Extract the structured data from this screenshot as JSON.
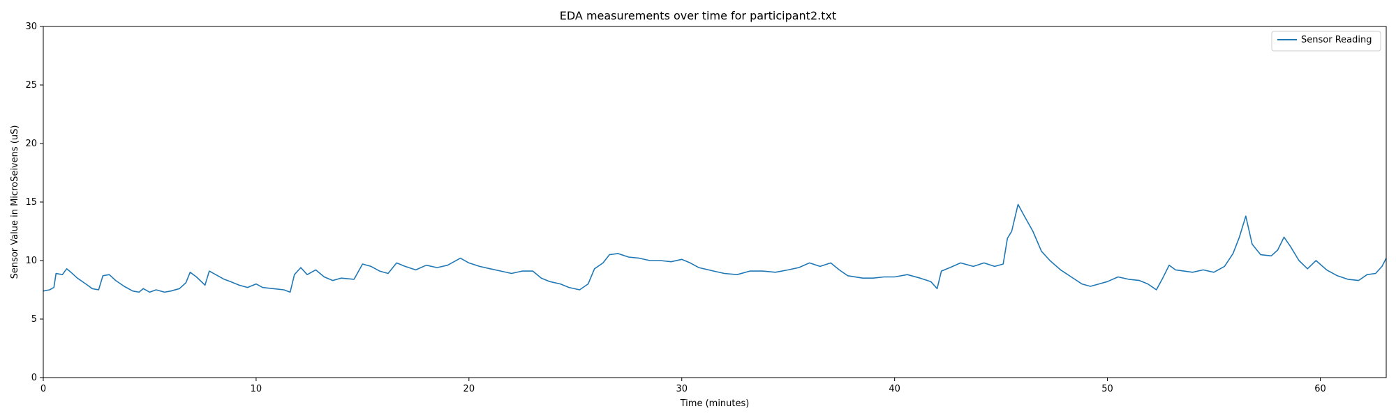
{
  "chart_data": {
    "type": "line",
    "title": "EDA measurements over time for participant2.txt",
    "xlabel": "Time (minutes)",
    "ylabel": "Sensor Value in MicroSeivens (uS)",
    "xlim": [
      0,
      63.1
    ],
    "ylim": [
      0,
      30
    ],
    "x_ticks": [
      0,
      10,
      20,
      30,
      40,
      50,
      60
    ],
    "y_ticks": [
      0,
      5,
      10,
      15,
      20,
      25,
      30
    ],
    "grid": false,
    "legend_position": "top-right",
    "series": [
      {
        "name": "Sensor Reading",
        "color": "#1f77b4",
        "points": [
          [
            0,
            7.4
          ],
          [
            0.3,
            7.5
          ],
          [
            0.5,
            7.7
          ],
          [
            0.6,
            8.9
          ],
          [
            0.9,
            8.8
          ],
          [
            1.1,
            9.3
          ],
          [
            1.3,
            9.0
          ],
          [
            1.6,
            8.5
          ],
          [
            2.0,
            8.0
          ],
          [
            2.3,
            7.6
          ],
          [
            2.6,
            7.5
          ],
          [
            2.8,
            8.7
          ],
          [
            3.1,
            8.8
          ],
          [
            3.4,
            8.3
          ],
          [
            3.8,
            7.8
          ],
          [
            4.2,
            7.4
          ],
          [
            4.5,
            7.3
          ],
          [
            4.7,
            7.6
          ],
          [
            5.0,
            7.3
          ],
          [
            5.3,
            7.5
          ],
          [
            5.7,
            7.3
          ],
          [
            6.0,
            7.4
          ],
          [
            6.4,
            7.6
          ],
          [
            6.7,
            8.1
          ],
          [
            6.9,
            9.0
          ],
          [
            7.2,
            8.6
          ],
          [
            7.6,
            7.9
          ],
          [
            7.8,
            9.1
          ],
          [
            8.2,
            8.7
          ],
          [
            8.5,
            8.4
          ],
          [
            8.8,
            8.2
          ],
          [
            9.2,
            7.9
          ],
          [
            9.6,
            7.7
          ],
          [
            10.0,
            8.0
          ],
          [
            10.3,
            7.7
          ],
          [
            10.8,
            7.6
          ],
          [
            11.3,
            7.5
          ],
          [
            11.6,
            7.3
          ],
          [
            11.8,
            8.8
          ],
          [
            12.1,
            9.4
          ],
          [
            12.4,
            8.8
          ],
          [
            12.8,
            9.2
          ],
          [
            13.2,
            8.6
          ],
          [
            13.6,
            8.3
          ],
          [
            14.0,
            8.5
          ],
          [
            14.6,
            8.4
          ],
          [
            15.0,
            9.7
          ],
          [
            15.4,
            9.5
          ],
          [
            15.8,
            9.1
          ],
          [
            16.2,
            8.9
          ],
          [
            16.6,
            9.8
          ],
          [
            17.0,
            9.5
          ],
          [
            17.5,
            9.2
          ],
          [
            18.0,
            9.6
          ],
          [
            18.5,
            9.4
          ],
          [
            19.0,
            9.6
          ],
          [
            19.6,
            10.2
          ],
          [
            20.0,
            9.8
          ],
          [
            20.5,
            9.5
          ],
          [
            21.0,
            9.3
          ],
          [
            21.5,
            9.1
          ],
          [
            22.0,
            8.9
          ],
          [
            22.5,
            9.1
          ],
          [
            23.0,
            9.1
          ],
          [
            23.4,
            8.5
          ],
          [
            23.8,
            8.2
          ],
          [
            24.3,
            8.0
          ],
          [
            24.7,
            7.7
          ],
          [
            25.2,
            7.5
          ],
          [
            25.6,
            8.0
          ],
          [
            25.9,
            9.3
          ],
          [
            26.3,
            9.8
          ],
          [
            26.6,
            10.5
          ],
          [
            27.0,
            10.6
          ],
          [
            27.5,
            10.3
          ],
          [
            28.0,
            10.2
          ],
          [
            28.5,
            10.0
          ],
          [
            29.0,
            10.0
          ],
          [
            29.5,
            9.9
          ],
          [
            30.0,
            10.1
          ],
          [
            30.4,
            9.8
          ],
          [
            30.8,
            9.4
          ],
          [
            31.5,
            9.1
          ],
          [
            32.0,
            8.9
          ],
          [
            32.6,
            8.8
          ],
          [
            33.2,
            9.1
          ],
          [
            33.8,
            9.1
          ],
          [
            34.4,
            9.0
          ],
          [
            35.0,
            9.2
          ],
          [
            35.5,
            9.4
          ],
          [
            36.0,
            9.8
          ],
          [
            36.5,
            9.5
          ],
          [
            37.0,
            9.8
          ],
          [
            37.4,
            9.2
          ],
          [
            37.8,
            8.7
          ],
          [
            38.5,
            8.5
          ],
          [
            39.0,
            8.5
          ],
          [
            39.5,
            8.6
          ],
          [
            40.0,
            8.6
          ],
          [
            40.6,
            8.8
          ],
          [
            41.2,
            8.5
          ],
          [
            41.7,
            8.2
          ],
          [
            42.0,
            7.6
          ],
          [
            42.2,
            9.1
          ],
          [
            42.6,
            9.4
          ],
          [
            43.1,
            9.8
          ],
          [
            43.7,
            9.5
          ],
          [
            44.2,
            9.8
          ],
          [
            44.7,
            9.5
          ],
          [
            45.1,
            9.7
          ],
          [
            45.3,
            11.9
          ],
          [
            45.5,
            12.5
          ],
          [
            45.8,
            14.8
          ],
          [
            46.1,
            13.8
          ],
          [
            46.5,
            12.5
          ],
          [
            46.9,
            10.8
          ],
          [
            47.3,
            10.0
          ],
          [
            47.8,
            9.2
          ],
          [
            48.3,
            8.6
          ],
          [
            48.8,
            8.0
          ],
          [
            49.2,
            7.8
          ],
          [
            49.6,
            8.0
          ],
          [
            50.0,
            8.2
          ],
          [
            50.5,
            8.6
          ],
          [
            51.0,
            8.4
          ],
          [
            51.5,
            8.3
          ],
          [
            51.9,
            8.0
          ],
          [
            52.3,
            7.5
          ],
          [
            52.6,
            8.5
          ],
          [
            52.9,
            9.6
          ],
          [
            53.2,
            9.2
          ],
          [
            53.6,
            9.1
          ],
          [
            54.0,
            9.0
          ],
          [
            54.5,
            9.2
          ],
          [
            55.0,
            9.0
          ],
          [
            55.5,
            9.5
          ],
          [
            55.9,
            10.6
          ],
          [
            56.2,
            12.0
          ],
          [
            56.5,
            13.8
          ],
          [
            56.8,
            11.4
          ],
          [
            57.2,
            10.5
          ],
          [
            57.7,
            10.4
          ],
          [
            58.0,
            10.9
          ],
          [
            58.3,
            12.0
          ],
          [
            58.6,
            11.2
          ],
          [
            59.0,
            10.0
          ],
          [
            59.4,
            9.3
          ],
          [
            59.8,
            10.0
          ],
          [
            60.3,
            9.2
          ],
          [
            60.8,
            8.7
          ],
          [
            61.3,
            8.4
          ],
          [
            61.8,
            8.3
          ],
          [
            62.2,
            8.8
          ],
          [
            62.6,
            8.9
          ],
          [
            62.9,
            9.5
          ],
          [
            63.1,
            10.2
          ]
        ]
      }
    ]
  }
}
